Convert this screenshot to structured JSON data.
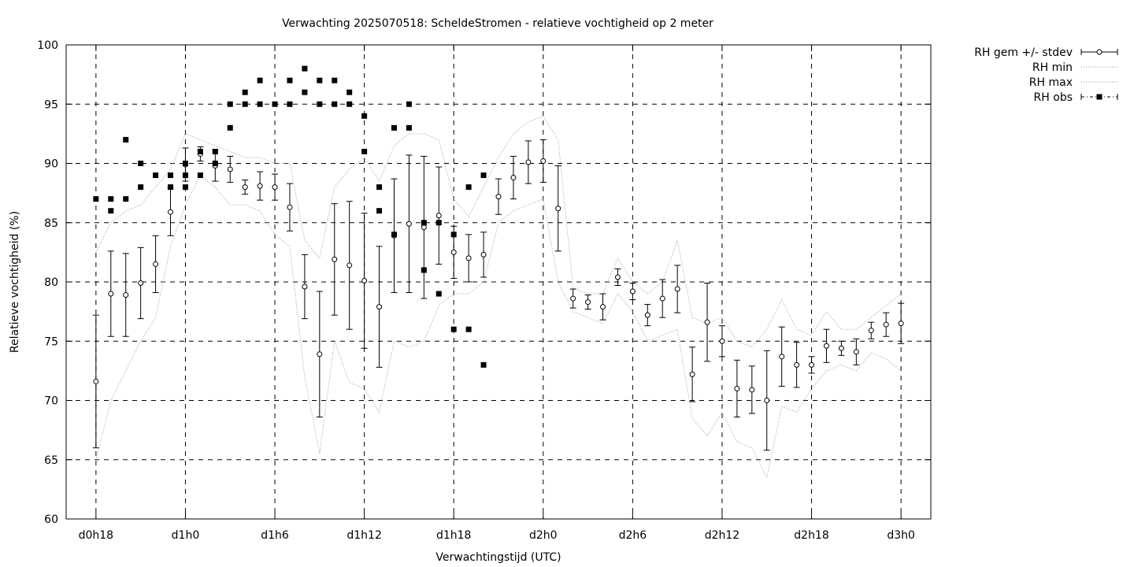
{
  "chart_data": {
    "type": "scatter",
    "title": "Verwachting 2025070518: ScheldeStromen - relatieve vochtigheid op 2 meter",
    "xlabel": "Verwachtingstijd (UTC)",
    "ylabel": "Relatieve vochtigheid (%)",
    "xlim": [
      -2,
      56
    ],
    "ylim": [
      60,
      100
    ],
    "yticks": [
      60,
      65,
      70,
      75,
      80,
      85,
      90,
      95,
      100
    ],
    "xticks": [
      {
        "x": 0,
        "label": "d0h18"
      },
      {
        "x": 6,
        "label": "d1h0"
      },
      {
        "x": 12,
        "label": "d1h6"
      },
      {
        "x": 18,
        "label": "d1h12"
      },
      {
        "x": 24,
        "label": "d1h18"
      },
      {
        "x": 30,
        "label": "d2h0"
      },
      {
        "x": 36,
        "label": "d2h6"
      },
      {
        "x": 42,
        "label": "d2h12"
      },
      {
        "x": 48,
        "label": "d2h18"
      },
      {
        "x": 54,
        "label": "d3h0"
      }
    ],
    "grid": true,
    "legend_position": "outside-top-right",
    "legend": [
      "RH gem +/- stdev",
      "RH min",
      "RH max",
      "RH obs"
    ],
    "series": [
      {
        "name": "RH gem +/- stdev",
        "style": "errorbars",
        "x": [
          0,
          1,
          2,
          3,
          4,
          5,
          6,
          7,
          8,
          9,
          10,
          11,
          12,
          13,
          14,
          15,
          16,
          17,
          18,
          19,
          20,
          21,
          22,
          23,
          24,
          25,
          26,
          27,
          28,
          29,
          30,
          31,
          32,
          33,
          34,
          35,
          36,
          37,
          38,
          39,
          40,
          41,
          42,
          43,
          44,
          45,
          46,
          47,
          48,
          49,
          50,
          51,
          52,
          53,
          54
        ],
        "mean": [
          71.6,
          79.0,
          78.9,
          79.9,
          81.5,
          85.9,
          89.9,
          90.8,
          89.8,
          89.5,
          88.0,
          88.1,
          88.0,
          86.3,
          79.6,
          73.9,
          81.9,
          81.4,
          80.1,
          77.9,
          83.9,
          84.9,
          84.6,
          85.6,
          82.5,
          82.0,
          82.3,
          87.2,
          88.8,
          90.1,
          90.2,
          86.2,
          78.6,
          78.3,
          77.9,
          80.4,
          79.2,
          77.2,
          78.6,
          79.4,
          72.2,
          76.6,
          75.0,
          71.0,
          70.9,
          70.0,
          73.7,
          73.0,
          73.0,
          74.6,
          74.4,
          74.1,
          75.9,
          76.4,
          76.5
        ],
        "stdev": [
          5.6,
          3.6,
          3.5,
          3.0,
          2.4,
          2.0,
          1.4,
          0.6,
          1.3,
          1.1,
          0.6,
          1.2,
          1.1,
          2.0,
          2.7,
          5.3,
          4.7,
          5.4,
          5.7,
          5.1,
          4.8,
          5.8,
          6.0,
          4.1,
          2.2,
          2.0,
          1.9,
          1.5,
          1.8,
          1.8,
          1.8,
          3.6,
          0.8,
          0.6,
          1.1,
          0.7,
          0.7,
          0.9,
          1.6,
          2.0,
          2.3,
          3.3,
          1.3,
          2.4,
          2.0,
          4.2,
          2.5,
          1.9,
          0.7,
          1.4,
          0.6,
          1.1,
          0.7,
          1.0,
          1.7
        ]
      },
      {
        "name": "RH min",
        "style": "dotted-line",
        "x": [
          0,
          1,
          2,
          3,
          4,
          5,
          6,
          7,
          8,
          9,
          10,
          11,
          12,
          13,
          14,
          15,
          16,
          17,
          18,
          19,
          20,
          21,
          22,
          23,
          24,
          25,
          26,
          27,
          28,
          29,
          30,
          31,
          32,
          33,
          34,
          35,
          36,
          37,
          38,
          39,
          40,
          41,
          42,
          43,
          44,
          45,
          46,
          47,
          48,
          49,
          50,
          51,
          52,
          53,
          54
        ],
        "values": [
          65,
          70,
          72.5,
          75,
          77,
          83,
          86.5,
          89,
          88,
          86.5,
          86.5,
          86,
          84,
          83,
          72,
          65.5,
          75,
          71.5,
          71,
          69,
          75,
          74.5,
          75,
          78,
          79,
          79,
          80,
          85,
          86,
          86.5,
          87,
          80,
          77.5,
          77,
          76.5,
          79,
          77.5,
          75,
          75.5,
          76,
          68.5,
          67,
          69,
          66.5,
          66,
          63.5,
          69.5,
          69,
          71,
          72.5,
          73,
          72.5,
          74,
          73.5,
          72.5
        ]
      },
      {
        "name": "RH max",
        "style": "dotted-line",
        "x": [
          0,
          1,
          2,
          3,
          4,
          5,
          6,
          7,
          8,
          9,
          10,
          11,
          12,
          13,
          14,
          15,
          16,
          17,
          18,
          19,
          20,
          21,
          22,
          23,
          24,
          25,
          26,
          27,
          28,
          29,
          30,
          31,
          32,
          33,
          34,
          35,
          36,
          37,
          38,
          39,
          40,
          41,
          42,
          43,
          44,
          45,
          46,
          47,
          48,
          49,
          50,
          51,
          52,
          53,
          54
        ],
        "values": [
          82.5,
          85,
          86,
          86.5,
          88,
          89.5,
          92.5,
          92,
          91.5,
          91,
          90.5,
          90.5,
          90,
          90,
          83.5,
          82,
          88,
          89.5,
          90.5,
          88.5,
          91.5,
          92.5,
          92.5,
          92,
          87,
          85.5,
          88,
          90.5,
          92.5,
          93.5,
          94,
          92,
          79.5,
          79,
          79,
          82,
          80,
          79,
          80,
          83.5,
          77,
          76.5,
          77,
          75,
          74.5,
          76,
          78.5,
          76,
          75.5,
          77.5,
          76,
          76,
          77,
          78,
          79
        ]
      },
      {
        "name": "RH obs",
        "style": "points",
        "x": [
          0,
          1,
          1,
          2,
          2,
          3,
          3,
          4,
          5,
          5,
          6,
          6,
          6,
          7,
          7,
          8,
          8,
          9,
          9,
          10,
          10,
          11,
          11,
          12,
          13,
          13,
          14,
          14,
          15,
          15,
          16,
          16,
          17,
          17,
          18,
          18,
          19,
          19,
          20,
          20,
          21,
          21,
          22,
          22,
          23,
          23,
          24,
          24,
          25,
          25,
          26,
          26
        ],
        "values": [
          87,
          87,
          86,
          92,
          87,
          90,
          88,
          89,
          89,
          88,
          90,
          89,
          88,
          91,
          89,
          91,
          90,
          95,
          93,
          96,
          95,
          97,
          95,
          95,
          97,
          95,
          98,
          96,
          97,
          95,
          97,
          95,
          96,
          95,
          94,
          91,
          88,
          86,
          93,
          84,
          95,
          93,
          85,
          81,
          85,
          79,
          84,
          76,
          88,
          76,
          89,
          73
        ]
      }
    ]
  }
}
